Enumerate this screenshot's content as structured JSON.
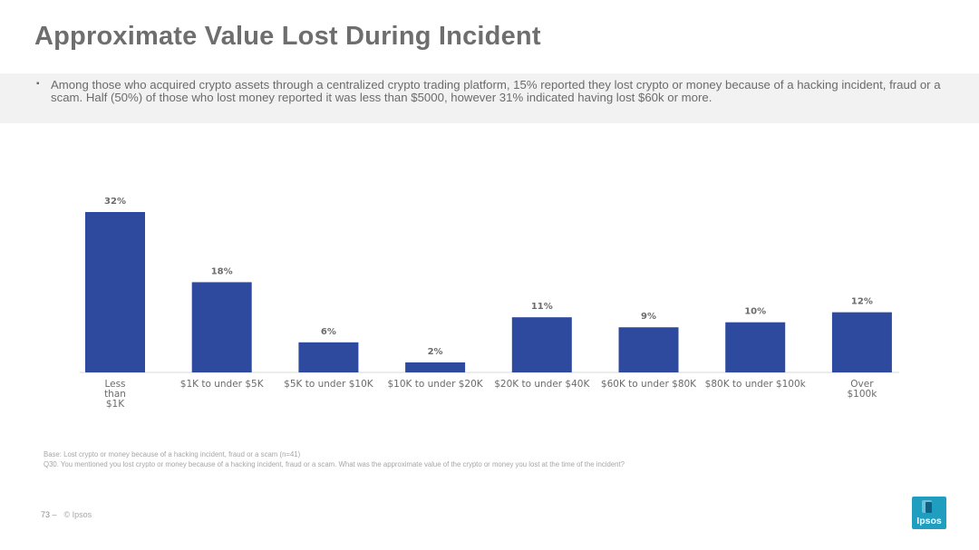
{
  "slide": {
    "title": "Approximate Value Lost During Incident",
    "bullet": "▪",
    "summary": "Among those who acquired crypto assets through a centralized crypto trading platform, 15% reported they lost crypto or money because of a hacking incident, fraud or a scam.  Half (50%) of those who lost money reported it was less than $5000, however 31% indicated having lost $60k or more.",
    "footnote_base": "Base: Lost crypto or money because of a hacking incident, fraud or a scam (n=41)",
    "footnote_question": "Q30. You mentioned you lost crypto or money because of a hacking incident, fraud or a scam. What was the approximate value of the crypto or money you lost at the time of the incident?",
    "page_number": "73 –",
    "copyright": "© Ipsos",
    "logo_text": "Ipsos"
  },
  "colors": {
    "bar": "#2e4a9e",
    "logo": "#1f9ec0"
  },
  "chart_data": {
    "type": "bar",
    "title": "",
    "xlabel": "",
    "ylabel": "",
    "ylim": [
      0,
      35
    ],
    "categories": [
      [
        "Less",
        "than",
        "$1K"
      ],
      [
        "$1K to under $5K"
      ],
      [
        "$5K to under $10K"
      ],
      [
        "$10K to under $20K"
      ],
      [
        "$20K to under $40K"
      ],
      [
        "$60K to under $80K"
      ],
      [
        "$80K to under $100k"
      ],
      [
        "Over",
        "$100k"
      ]
    ],
    "values": [
      32,
      18,
      6,
      2,
      11,
      9,
      10,
      12
    ],
    "labels": [
      "32%",
      "18%",
      "6%",
      "2%",
      "11%",
      "9%",
      "10%",
      "12%"
    ]
  }
}
